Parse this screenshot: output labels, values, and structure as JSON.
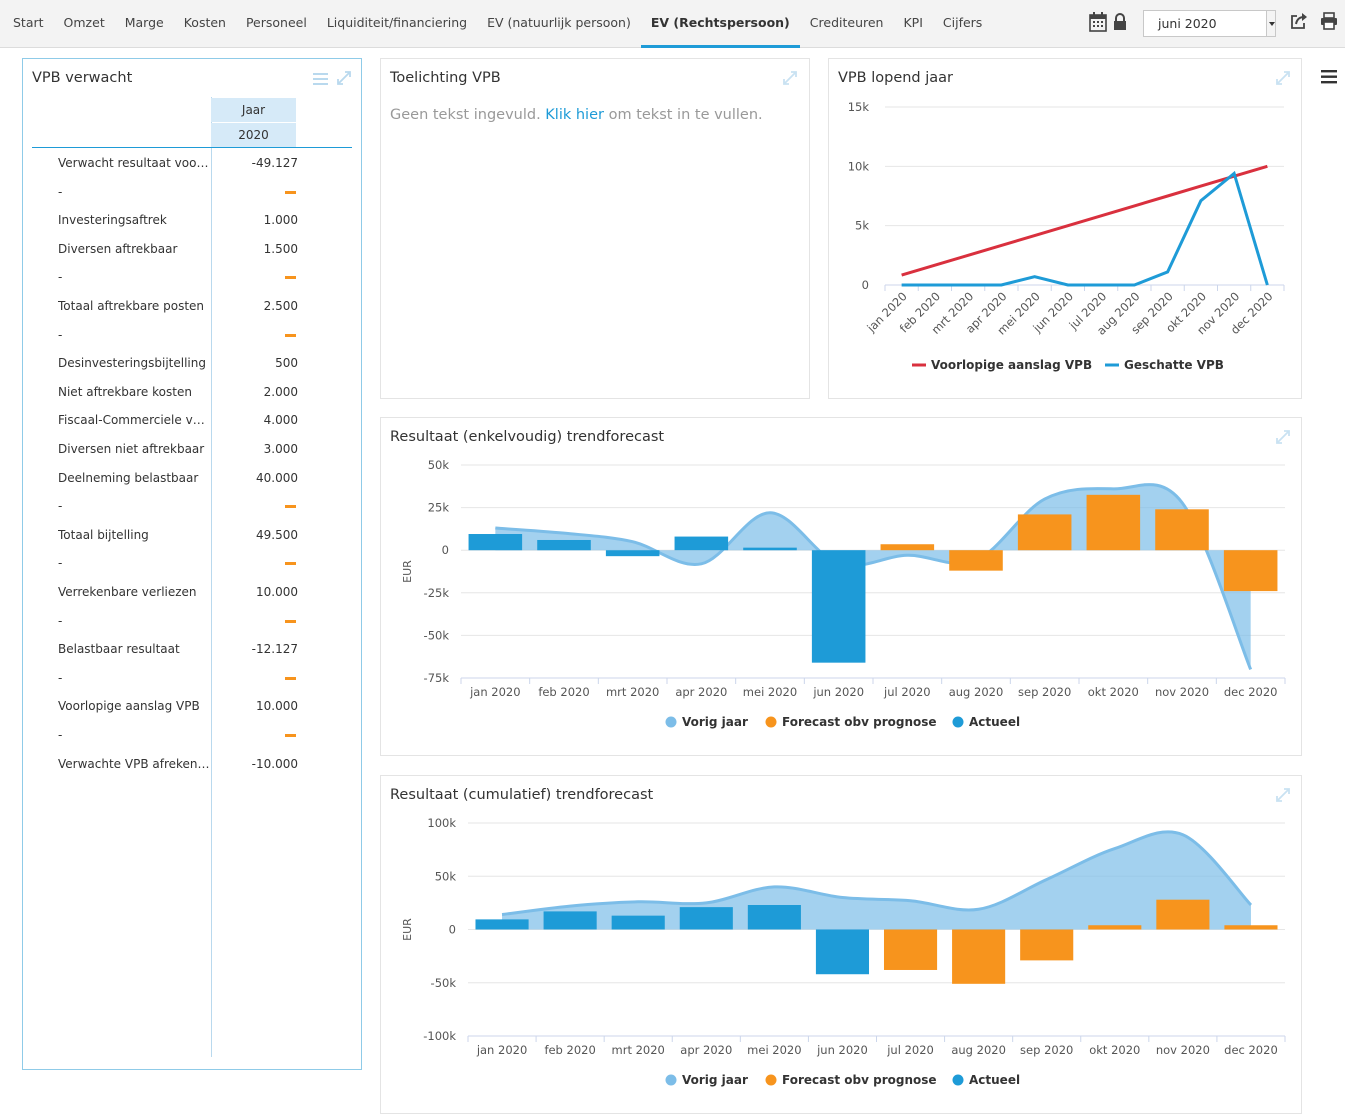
{
  "nav": {
    "items": [
      "Start",
      "Omzet",
      "Marge",
      "Kosten",
      "Personeel",
      "Liquiditeit/financiering",
      "EV (natuurlijk persoon)",
      "EV (Rechtspersoon)",
      "Crediteuren",
      "KPI",
      "Cijfers"
    ],
    "active_index": 7
  },
  "toolbar": {
    "month": "juni 2020",
    "icons": [
      "calendar-icon",
      "lock-icon",
      "share-icon",
      "print-icon",
      "menu-icon"
    ]
  },
  "vpb_table": {
    "title": "VPB verwacht",
    "col_group": "Jaar",
    "col_year": "2020",
    "rows": [
      {
        "label": "Verwacht resultaat voor belasting",
        "value": "-49.127",
        "dash": false
      },
      {
        "label": "-",
        "value": "",
        "dash": true
      },
      {
        "label": "Investeringsaftrek",
        "value": "1.000",
        "dash": false
      },
      {
        "label": "Diversen aftrekbaar",
        "value": "1.500",
        "dash": false
      },
      {
        "label": "-",
        "value": "",
        "dash": true
      },
      {
        "label": "Totaal aftrekbare posten",
        "value": "2.500",
        "dash": false
      },
      {
        "label": "-",
        "value": "",
        "dash": true
      },
      {
        "label": "Desinvesteringsbijtelling",
        "value": "500",
        "dash": false
      },
      {
        "label": "Niet aftrekbare kosten",
        "value": "2.000",
        "dash": false
      },
      {
        "label": "Fiscaal-Commerciele verschillen",
        "value": "4.000",
        "dash": false
      },
      {
        "label": "Diversen niet aftrekbaar",
        "value": "3.000",
        "dash": false
      },
      {
        "label": "Deelneming belastbaar",
        "value": "40.000",
        "dash": false
      },
      {
        "label": "-",
        "value": "",
        "dash": true
      },
      {
        "label": "Totaal bijtelling",
        "value": "49.500",
        "dash": false
      },
      {
        "label": "-",
        "value": "",
        "dash": true
      },
      {
        "label": "Verrekenbare verliezen",
        "value": "10.000",
        "dash": false
      },
      {
        "label": "-",
        "value": "",
        "dash": true
      },
      {
        "label": "Belastbaar resultaat",
        "value": "-12.127",
        "dash": false
      },
      {
        "label": "-",
        "value": "",
        "dash": true
      },
      {
        "label": "Voorlopige aanslag VPB",
        "value": "10.000",
        "dash": false
      },
      {
        "label": "-",
        "value": "",
        "dash": true
      },
      {
        "label": "Verwachte VPB afrekening",
        "value": "-10.000",
        "dash": false
      }
    ]
  },
  "toelichting": {
    "title": "Toelichting VPB",
    "text_before": "Geen tekst ingevuld. ",
    "link": "Klik hier",
    "text_after": " om tekst in te vullen."
  },
  "chart_data": [
    {
      "type": "line",
      "title": "VPB lopend jaar",
      "categories": [
        "jan 2020",
        "feb 2020",
        "mrt 2020",
        "apr 2020",
        "mei 2020",
        "jun 2020",
        "jul 2020",
        "aug 2020",
        "sep 2020",
        "okt 2020",
        "nov 2020",
        "dec 2020"
      ],
      "yticks": [
        "15k",
        "10k",
        "5k",
        "0"
      ],
      "ylim": [
        0,
        15000
      ],
      "series": [
        {
          "name": "Voorlopige aanslag VPB",
          "color": "#d9303e",
          "values": [
            833,
            1667,
            2500,
            3333,
            4167,
            5000,
            5833,
            6667,
            7500,
            8333,
            9167,
            10000
          ]
        },
        {
          "name": "Geschatte VPB",
          "color": "#1e9bd7",
          "values": [
            0,
            0,
            0,
            0,
            700,
            0,
            0,
            0,
            1100,
            7100,
            9400,
            0
          ]
        }
      ]
    },
    {
      "type": "bar",
      "title": "Resultaat (enkelvoudig) trendforecast",
      "ylabel": "EUR",
      "categories": [
        "jan 2020",
        "feb 2020",
        "mrt 2020",
        "apr 2020",
        "mei 2020",
        "jun 2020",
        "jul 2020",
        "aug 2020",
        "sep 2020",
        "okt 2020",
        "nov 2020",
        "dec 2020"
      ],
      "yticks": [
        "50k",
        "25k",
        "0",
        "-25k",
        "-50k",
        "-75k"
      ],
      "ylim": [
        -75000,
        50000
      ],
      "series": [
        {
          "name": "Vorig jaar",
          "kind": "area",
          "color": "#7cbde8",
          "values": [
            13000,
            10000,
            5000,
            -8000,
            22000,
            -8000,
            -3000,
            -6000,
            30000,
            36000,
            28000,
            -70000
          ]
        },
        {
          "name": "Forecast obv prognose",
          "kind": "bar",
          "color": "#f7941d",
          "values": [
            null,
            null,
            null,
            null,
            null,
            null,
            3500,
            -12000,
            21000,
            32500,
            24000,
            -24000
          ]
        },
        {
          "name": "Actueel",
          "kind": "bar",
          "color": "#1e9bd7",
          "values": [
            9500,
            6000,
            -3500,
            8000,
            1500,
            -66000,
            null,
            null,
            null,
            null,
            null,
            null
          ]
        }
      ]
    },
    {
      "type": "bar",
      "title": "Resultaat (cumulatief) trendforecast",
      "ylabel": "EUR",
      "categories": [
        "jan 2020",
        "feb 2020",
        "mrt 2020",
        "apr 2020",
        "mei 2020",
        "jun 2020",
        "jul 2020",
        "aug 2020",
        "sep 2020",
        "okt 2020",
        "nov 2020",
        "dec 2020"
      ],
      "yticks": [
        "100k",
        "50k",
        "0",
        "-50k",
        "-100k"
      ],
      "ylim": [
        -100000,
        100000
      ],
      "series": [
        {
          "name": "Vorig jaar",
          "kind": "area",
          "color": "#7cbde8",
          "values": [
            14000,
            22000,
            26000,
            25000,
            40000,
            30000,
            27000,
            19000,
            47000,
            76000,
            89000,
            23000
          ]
        },
        {
          "name": "Forecast obv prognose",
          "kind": "bar",
          "color": "#f7941d",
          "values": [
            null,
            null,
            null,
            null,
            null,
            null,
            -38000,
            -51000,
            -29000,
            4000,
            28000,
            4000
          ]
        },
        {
          "name": "Actueel",
          "kind": "bar",
          "color": "#1e9bd7",
          "values": [
            9500,
            17000,
            13000,
            21000,
            23000,
            -42000,
            null,
            null,
            null,
            null,
            null,
            null
          ]
        }
      ]
    }
  ]
}
